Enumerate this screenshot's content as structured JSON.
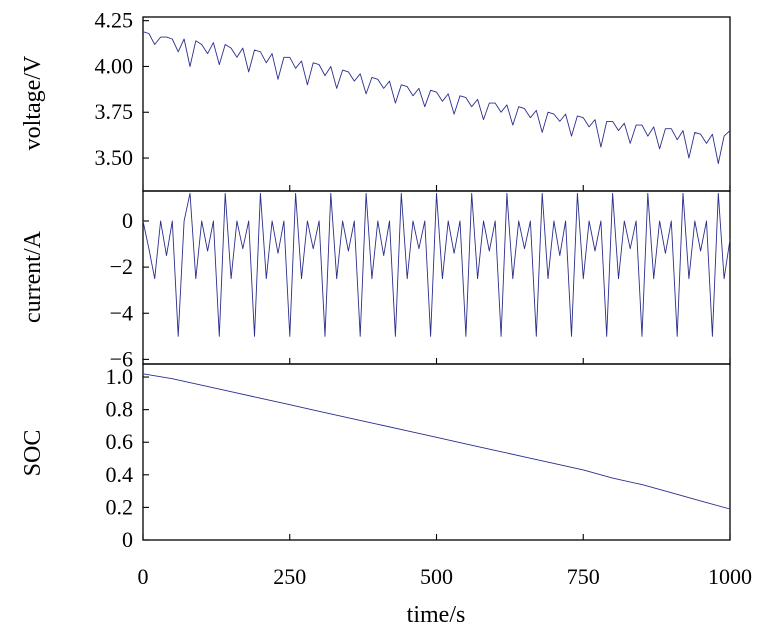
{
  "chart_data": [
    {
      "type": "line",
      "panel": "voltage",
      "ylabel": "voltage/V",
      "xlabel": "",
      "xlim": [
        0,
        1000
      ],
      "ylim": [
        3.32,
        4.27
      ],
      "yticks": [
        3.5,
        3.75,
        4.0,
        4.25
      ],
      "ytick_labels": [
        "3.50",
        "3.75",
        "4.00",
        "4.25"
      ],
      "series_color": "#2b2f8c",
      "series": [
        {
          "name": "voltage",
          "x": [
            0,
            10,
            20,
            30,
            40,
            50,
            60,
            70,
            80,
            90,
            100,
            110,
            120,
            130,
            140,
            150,
            160,
            170,
            180,
            190,
            200,
            210,
            220,
            230,
            240,
            250,
            260,
            270,
            280,
            290,
            300,
            310,
            320,
            330,
            340,
            350,
            360,
            370,
            380,
            390,
            400,
            410,
            420,
            430,
            440,
            450,
            460,
            470,
            480,
            490,
            500,
            510,
            520,
            530,
            540,
            550,
            560,
            570,
            580,
            590,
            600,
            610,
            620,
            630,
            640,
            650,
            660,
            670,
            680,
            690,
            700,
            710,
            720,
            730,
            740,
            750,
            760,
            770,
            780,
            790,
            800,
            810,
            820,
            830,
            840,
            850,
            860,
            870,
            880,
            890,
            900,
            910,
            920,
            930,
            940,
            950,
            960,
            970,
            980,
            990,
            1000
          ],
          "y": [
            4.19,
            4.18,
            4.12,
            4.16,
            4.16,
            4.15,
            4.08,
            4.15,
            4.0,
            4.14,
            4.12,
            4.07,
            4.13,
            4.01,
            4.12,
            4.1,
            4.05,
            4.1,
            3.97,
            4.09,
            4.08,
            4.02,
            4.07,
            3.93,
            4.05,
            4.05,
            3.99,
            4.03,
            3.9,
            4.02,
            4.01,
            3.95,
            4.0,
            3.88,
            3.98,
            3.97,
            3.92,
            3.96,
            3.85,
            3.94,
            3.93,
            3.88,
            3.92,
            3.8,
            3.9,
            3.89,
            3.84,
            3.88,
            3.78,
            3.87,
            3.86,
            3.81,
            3.85,
            3.74,
            3.84,
            3.83,
            3.78,
            3.82,
            3.71,
            3.8,
            3.8,
            3.75,
            3.79,
            3.68,
            3.78,
            3.77,
            3.72,
            3.76,
            3.64,
            3.75,
            3.74,
            3.7,
            3.74,
            3.62,
            3.73,
            3.72,
            3.67,
            3.71,
            3.56,
            3.7,
            3.7,
            3.65,
            3.69,
            3.58,
            3.68,
            3.68,
            3.62,
            3.67,
            3.55,
            3.66,
            3.66,
            3.6,
            3.65,
            3.5,
            3.64,
            3.63,
            3.58,
            3.63,
            3.47,
            3.62,
            3.65
          ]
        }
      ]
    },
    {
      "type": "line",
      "panel": "current",
      "ylabel": "current/A",
      "xlabel": "",
      "xlim": [
        0,
        1000
      ],
      "ylim": [
        -6.2,
        1.3
      ],
      "yticks": [
        -6,
        -4,
        -2,
        0
      ],
      "ytick_labels": [
        "−6",
        "−4",
        "−2",
        "0"
      ],
      "series_color": "#2b2f8c",
      "series": [
        {
          "name": "current",
          "x": [
            0,
            10,
            20,
            30,
            40,
            50,
            60,
            70,
            80,
            90,
            100,
            110,
            120,
            130,
            140,
            150,
            160,
            170,
            180,
            190,
            200,
            210,
            220,
            230,
            240,
            250,
            260,
            270,
            280,
            290,
            300,
            310,
            320,
            330,
            340,
            350,
            360,
            370,
            380,
            390,
            400,
            410,
            420,
            430,
            440,
            450,
            460,
            470,
            480,
            490,
            500,
            510,
            520,
            530,
            540,
            550,
            560,
            570,
            580,
            590,
            600,
            610,
            620,
            630,
            640,
            650,
            660,
            670,
            680,
            690,
            700,
            710,
            720,
            730,
            740,
            750,
            760,
            770,
            780,
            790,
            800,
            810,
            820,
            830,
            840,
            850,
            860,
            870,
            880,
            890,
            900,
            910,
            920,
            930,
            940,
            950,
            960,
            970,
            980,
            990,
            1000
          ],
          "y": [
            0,
            -1.2,
            -2.5,
            0,
            -1.5,
            0,
            -5.0,
            0,
            1.2,
            -2.5,
            0,
            -1.3,
            0,
            -5.0,
            1.2,
            -2.5,
            0,
            -1.2,
            0,
            -5.0,
            1.2,
            -2.5,
            0,
            -1.4,
            0,
            -5.0,
            1.2,
            -2.5,
            0,
            -1.2,
            0,
            -5.0,
            1.2,
            -2.5,
            0,
            -1.3,
            0,
            -5.0,
            1.2,
            -2.5,
            0,
            -1.5,
            0,
            -5.0,
            1.2,
            -2.5,
            0,
            -1.2,
            0,
            -5.0,
            1.2,
            -2.5,
            0,
            -1.4,
            0,
            -5.0,
            1.2,
            -2.5,
            0,
            -1.3,
            0,
            -5.0,
            1.2,
            -2.5,
            0,
            -1.2,
            0,
            -5.0,
            1.2,
            -2.5,
            0,
            -1.5,
            0,
            -5.0,
            1.2,
            -2.5,
            0,
            -1.3,
            0,
            -5.0,
            1.2,
            -2.5,
            0,
            -1.2,
            0,
            -5.0,
            1.2,
            -2.5,
            0,
            -1.4,
            0,
            -5.0,
            1.2,
            -2.5,
            0,
            -1.3,
            0,
            -5.0,
            1.2,
            -2.5,
            -0.8
          ]
        }
      ]
    },
    {
      "type": "line",
      "panel": "soc",
      "ylabel": "SOC",
      "xlabel": "time/s",
      "xlim": [
        0,
        1000
      ],
      "ylim": [
        0,
        1.08
      ],
      "yticks": [
        0,
        0.2,
        0.4,
        0.6,
        0.8,
        1.0
      ],
      "ytick_labels": [
        "0",
        "0.2",
        "0.4",
        "0.6",
        "0.8",
        "1.0"
      ],
      "xticks": [
        0,
        250,
        500,
        750,
        1000
      ],
      "xtick_labels": [
        "0",
        "250",
        "500",
        "750",
        "1000"
      ],
      "series_color": "#2b2f8c",
      "series": [
        {
          "name": "SOC",
          "x": [
            0,
            50,
            100,
            150,
            200,
            250,
            300,
            350,
            400,
            450,
            500,
            550,
            600,
            650,
            700,
            750,
            800,
            850,
            900,
            950,
            1000
          ],
          "y": [
            1.02,
            0.99,
            0.95,
            0.91,
            0.87,
            0.83,
            0.79,
            0.75,
            0.71,
            0.67,
            0.63,
            0.59,
            0.55,
            0.51,
            0.47,
            0.43,
            0.38,
            0.34,
            0.29,
            0.24,
            0.19
          ]
        }
      ]
    }
  ]
}
